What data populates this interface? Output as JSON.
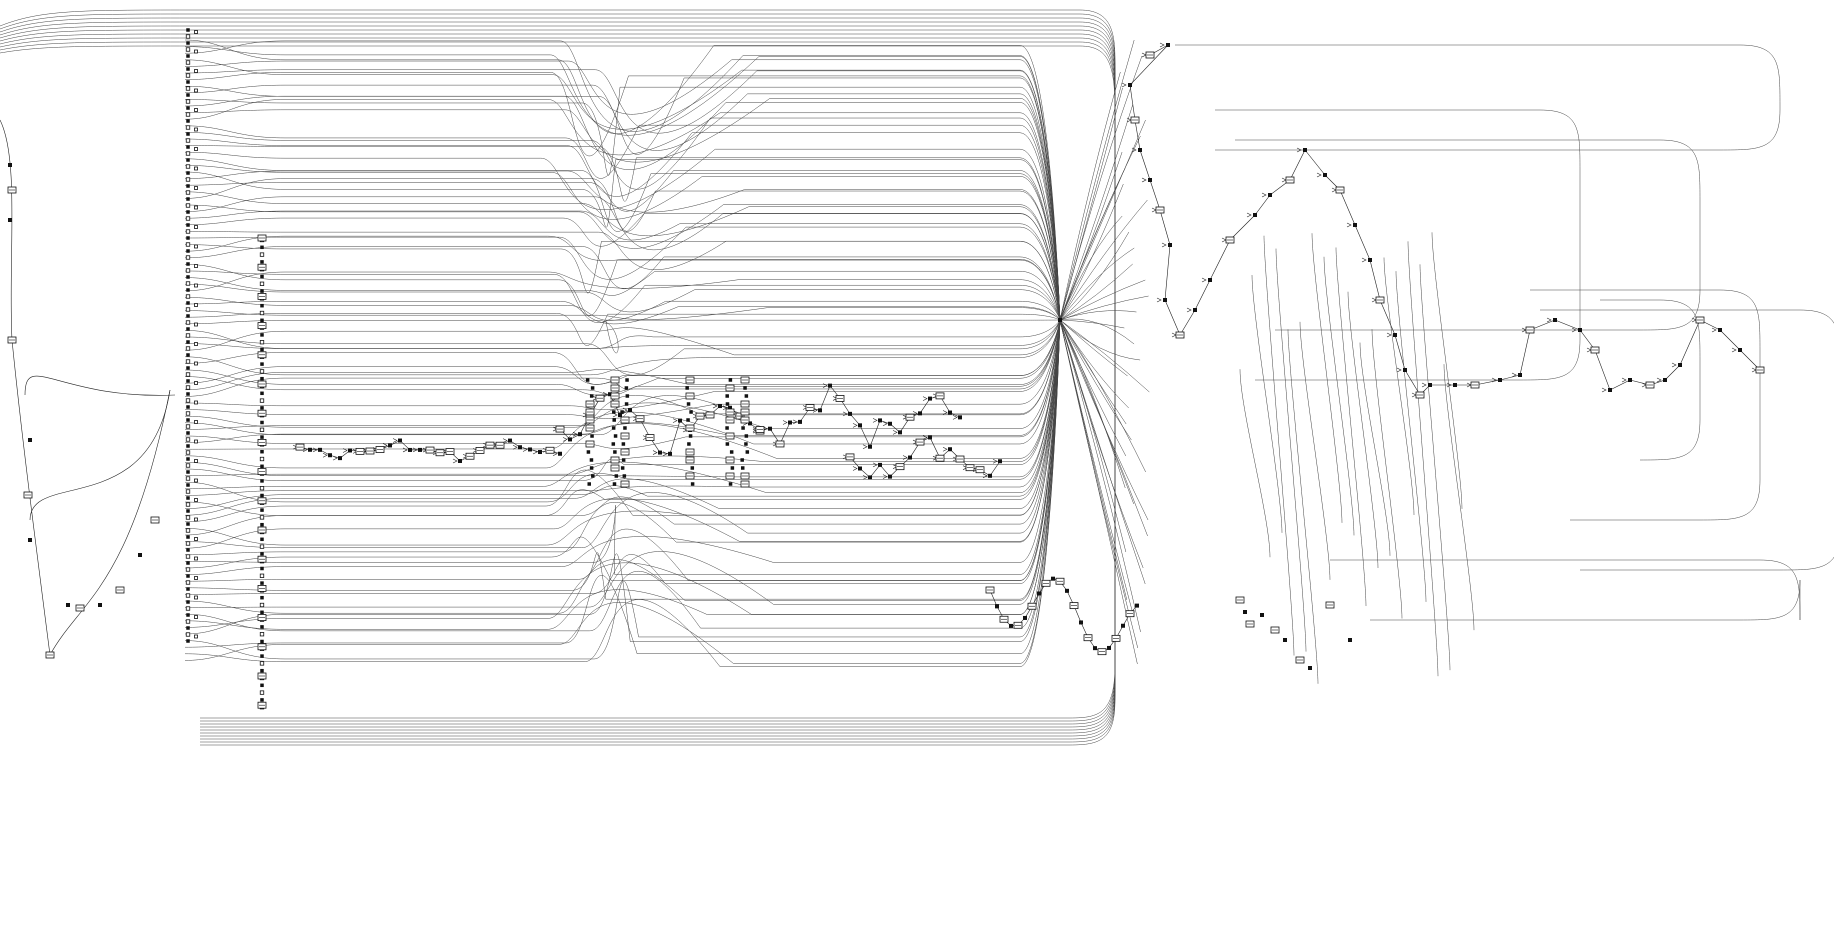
{
  "diagram": {
    "kind": "flow-graph",
    "edge_color": "#222222",
    "node_color": "#111111",
    "background": "#ffffff"
  }
}
